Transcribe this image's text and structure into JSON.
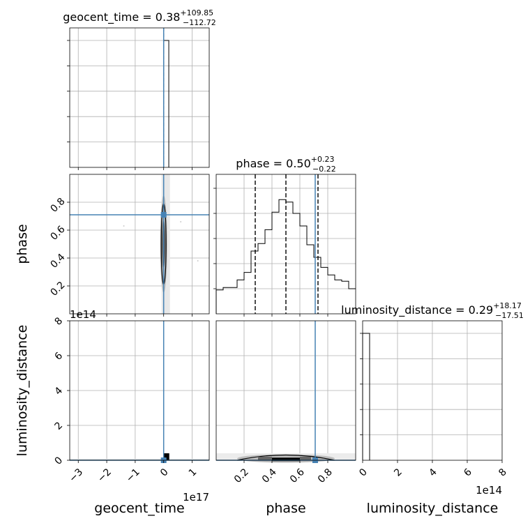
{
  "chart_data": {
    "type": "corner",
    "parameters": [
      "geocent_time",
      "phase",
      "luminosity_distance"
    ],
    "titles": [
      {
        "param": "geocent_time",
        "prefix": "geocent_time = ",
        "median": "0.38",
        "plus": "+109.85",
        "minus": "−112.72"
      },
      {
        "param": "phase",
        "prefix": "phase = ",
        "median": "0.50",
        "plus": "+0.23",
        "minus": "−0.22"
      },
      {
        "param": "luminosity_distance",
        "prefix": "luminosity_distance = ",
        "median": "0.29",
        "plus": "+18.17",
        "minus": "−17.51"
      }
    ],
    "axis_labels": {
      "geocent_time": "geocent_time",
      "phase": "phase",
      "luminosity_distance": "luminosity_distance"
    },
    "offset_labels": {
      "geocent_time_x": "1e17",
      "luminosity_distance_x": "1e14",
      "luminosity_distance_y": "1e14"
    },
    "ranges": {
      "geocent_time": [
        -3.3,
        1.6
      ],
      "phase": [
        0.0,
        1.0
      ],
      "luminosity_distance": [
        0,
        8.0
      ]
    },
    "ticks": {
      "geocent_time": {
        "values": [
          -3,
          -2,
          -1,
          0,
          1
        ],
        "labels": [
          "−3",
          "−2",
          "−1",
          "0",
          "1"
        ]
      },
      "phase_x": {
        "values": [
          0.2,
          0.4,
          0.6,
          0.8
        ],
        "labels": [
          "0.2",
          "0.4",
          "0.6",
          "0.8"
        ]
      },
      "phase_y": {
        "values": [
          0.2,
          0.4,
          0.6,
          0.8
        ],
        "labels": [
          "0.2",
          "0.4",
          "0.6",
          "0.8"
        ]
      },
      "luminosity_distance": {
        "values": [
          0,
          2,
          4,
          6,
          8
        ],
        "labels": [
          "0",
          "2",
          "4",
          "6",
          "8"
        ]
      }
    },
    "injection": {
      "geocent_time": 0.0,
      "phase": 0.71,
      "luminosity_distance": 0.0
    },
    "quantiles": {
      "geocent_time": [
        0.0
      ],
      "phase": [
        0.28,
        0.5,
        0.73
      ]
    },
    "histograms": {
      "geocent_time": {
        "bins": [
          [
            0.0,
            0.18,
            1.0
          ]
        ],
        "max": 1.0
      },
      "phase": {
        "edges": [
          0.0,
          0.05,
          0.1,
          0.15,
          0.2,
          0.25,
          0.3,
          0.35,
          0.4,
          0.45,
          0.5,
          0.55,
          0.6,
          0.65,
          0.7,
          0.75,
          0.8,
          0.85,
          0.9,
          0.95,
          1.0
        ],
        "counts": [
          0.19,
          0.21,
          0.21,
          0.27,
          0.33,
          0.5,
          0.56,
          0.67,
          0.81,
          0.91,
          0.89,
          0.8,
          0.7,
          0.55,
          0.45,
          0.37,
          0.31,
          0.27,
          0.26,
          0.2
        ]
      },
      "luminosity_distance": {
        "bins": [
          [
            0.0,
            0.4,
            1.0
          ]
        ],
        "max": 1.0
      }
    },
    "grid": true
  }
}
